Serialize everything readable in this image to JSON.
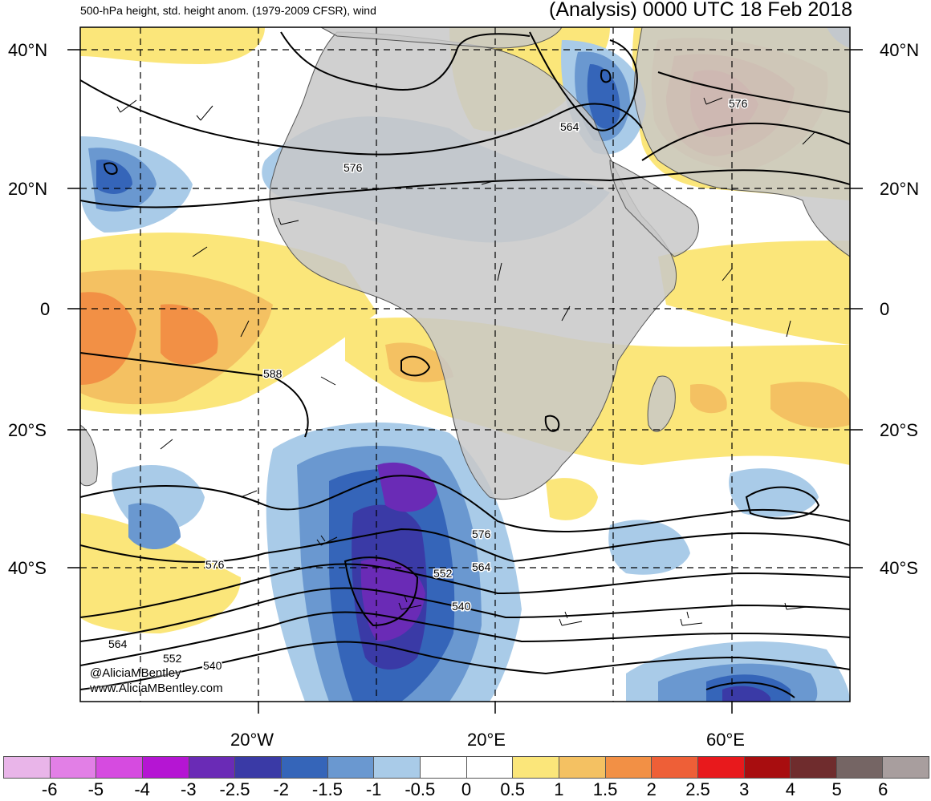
{
  "title_left": "500-hPa height, std. height anom. (1979-2009 CFSR), wind",
  "title_right": "(Analysis) 0000 UTC 18 Feb 2018",
  "lat_labels_left": [
    "40°N",
    "20°N",
    "0",
    "20°S",
    "40°S"
  ],
  "lat_labels_right": [
    "40°N",
    "20°N",
    "0",
    "20°S",
    "40°S"
  ],
  "lon_labels": [
    "20°W",
    "20°E",
    "60°E"
  ],
  "credit_lines": [
    "@AliciaMBentley",
    "www.AliciaMBentley.com"
  ],
  "contour_labels": [
    "576",
    "564",
    "576",
    "588",
    "576",
    "576",
    "564",
    "552",
    "540",
    "564",
    "552",
    "540"
  ],
  "colorbar": {
    "labels": [
      "-6",
      "-5",
      "-4",
      "-3",
      "-2.5",
      "-2",
      "-1.5",
      "-1",
      "-0.5",
      "0",
      "0.5",
      "1",
      "1.5",
      "2",
      "2.5",
      "3",
      "4",
      "5",
      "6"
    ],
    "colors": [
      "#e9b5e9",
      "#e27fe6",
      "#d64be0",
      "#b515d3",
      "#6a2bb6",
      "#3a3aa6",
      "#3565b9",
      "#6a98d0",
      "#a9cbe8",
      "#ffffff",
      "#ffffff",
      "#fbe67a",
      "#f4c162",
      "#f29045",
      "#ee5f37",
      "#e8191c",
      "#a80d0f",
      "#6f2c2d",
      "#756564",
      "#a89e9e"
    ]
  },
  "land_color": "#c8c8c8"
}
